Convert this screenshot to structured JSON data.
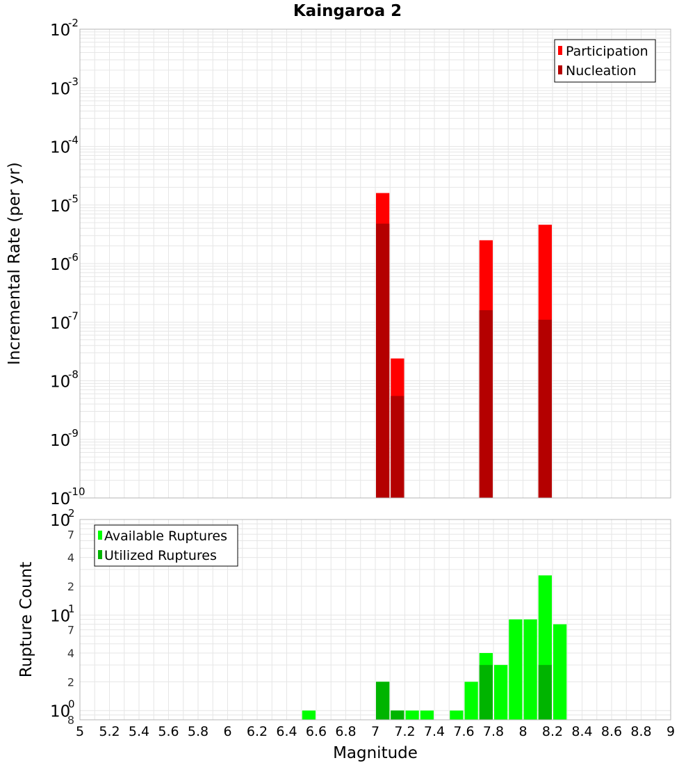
{
  "title": "Kaingaroa 2",
  "xlabel": "Magnitude",
  "colors": {
    "participation": "#ff0000",
    "nucleation": "#b40000",
    "available": "#00ff00",
    "utilized": "#00b400",
    "grid": "#e6e6e6",
    "plot_border": "#b4b4b4"
  },
  "chart_data": [
    {
      "type": "bar",
      "overlaid": true,
      "ylabel": "Incremental Rate (per yr)",
      "yscale": "log",
      "ylim": [
        1e-10,
        0.01
      ],
      "xlim": [
        5,
        9
      ],
      "bin_width": 0.1,
      "legend_position": "top-right",
      "y_tick_labels": [
        {
          "base": "10",
          "exp": "-2",
          "value": 0.01
        },
        {
          "base": "10",
          "exp": "-3",
          "value": 0.001
        },
        {
          "base": "10",
          "exp": "-4",
          "value": 0.0001
        },
        {
          "base": "10",
          "exp": "-5",
          "value": 1e-05
        },
        {
          "base": "10",
          "exp": "-6",
          "value": 1e-06
        },
        {
          "base": "10",
          "exp": "-7",
          "value": 1e-07
        },
        {
          "base": "10",
          "exp": "-8",
          "value": 1e-08
        },
        {
          "base": "10",
          "exp": "-9",
          "value": 1e-09
        },
        {
          "base": "10",
          "exp": "-10",
          "value": 1e-10
        }
      ],
      "series": [
        {
          "name": "Participation",
          "color_key": "participation",
          "x": [
            7.05,
            7.15,
            7.75,
            8.15
          ],
          "values": [
            1.6e-05,
            2.4e-08,
            2.5e-06,
            4.6e-06
          ]
        },
        {
          "name": "Nucleation",
          "color_key": "nucleation",
          "x": [
            7.05,
            7.15,
            7.75,
            8.15
          ],
          "values": [
            4.8e-06,
            5.5e-09,
            1.6e-07,
            1.1e-07
          ]
        }
      ]
    },
    {
      "type": "bar",
      "overlaid": true,
      "ylabel": "Rupture Count",
      "yscale": "log",
      "ylim": [
        0.8,
        100
      ],
      "xlim": [
        5,
        9
      ],
      "bin_width": 0.1,
      "legend_position": "top-left",
      "y_tick_labels": [
        {
          "base": "10",
          "exp": "2",
          "value": 100
        },
        {
          "base": "7",
          "value": 70
        },
        {
          "base": "4",
          "value": 40
        },
        {
          "base": "2",
          "value": 20
        },
        {
          "base": "10",
          "exp": "1",
          "value": 10
        },
        {
          "base": "7",
          "value": 7
        },
        {
          "base": "4",
          "value": 4
        },
        {
          "base": "2",
          "value": 2
        },
        {
          "base": "10",
          "exp": "0",
          "value": 1
        },
        {
          "base": "8",
          "value": 0.8
        }
      ],
      "series": [
        {
          "name": "Available Ruptures",
          "color_key": "available",
          "x": [
            6.55,
            7.05,
            7.15,
            7.25,
            7.35,
            7.55,
            7.65,
            7.75,
            7.85,
            7.95,
            8.05,
            8.15,
            8.25
          ],
          "values": [
            1,
            2,
            1,
            1,
            1,
            1,
            2,
            4,
            3,
            9,
            9,
            26,
            8
          ]
        },
        {
          "name": "Utilized Ruptures",
          "color_key": "utilized",
          "x": [
            7.05,
            7.15,
            7.75,
            8.15
          ],
          "values": [
            2,
            1,
            3,
            3
          ]
        }
      ]
    }
  ],
  "x_tick_labels": [
    "5",
    "5.2",
    "5.4",
    "5.6",
    "5.8",
    "6",
    "6.2",
    "6.4",
    "6.6",
    "6.8",
    "7",
    "7.2",
    "7.4",
    "7.6",
    "7.8",
    "8",
    "8.2",
    "8.4",
    "8.6",
    "8.8",
    "9"
  ]
}
